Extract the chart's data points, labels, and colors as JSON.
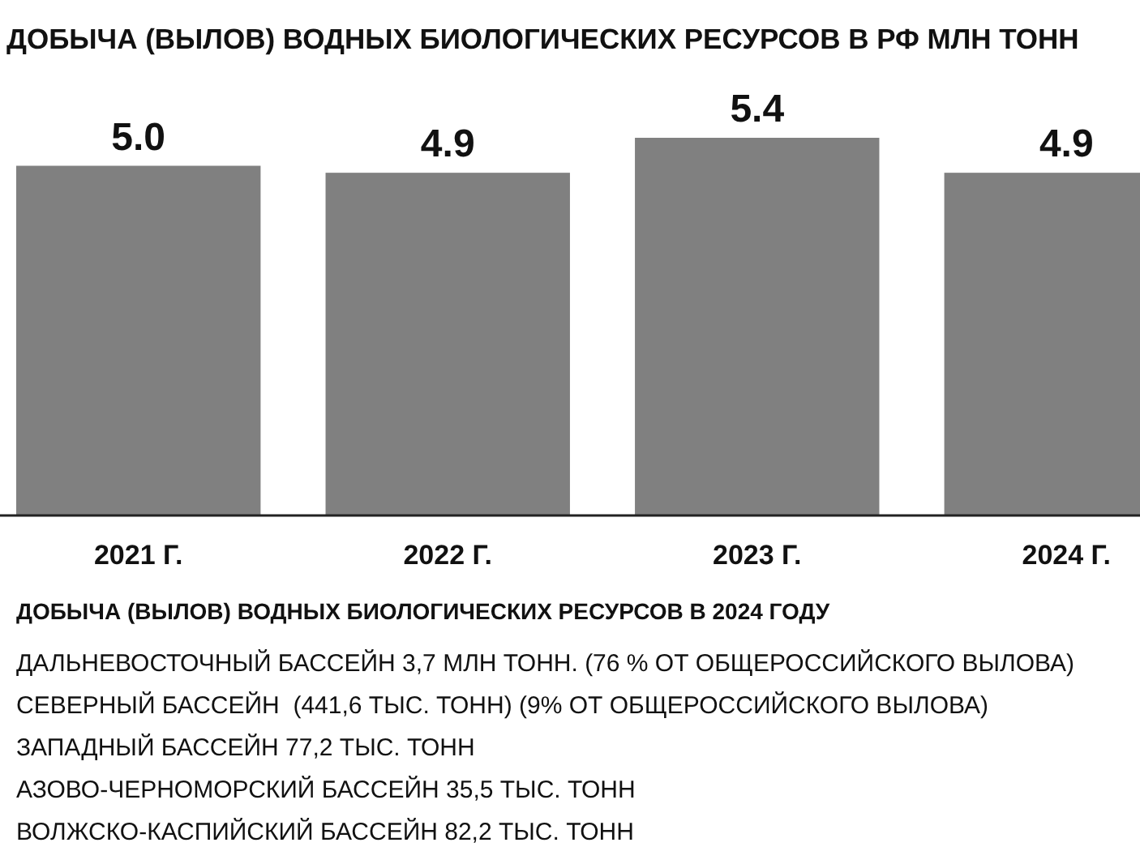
{
  "chart_data": {
    "type": "bar",
    "title": "ДОБЫЧА (ВЫЛОВ) ВОДНЫХ БИОЛОГИЧЕСКИХ РЕСУРСОВ В РФ МЛН ТОНН",
    "subtitle": "ДОБЫЧА (ВЫЛОВ) ВОДНЫХ БИОЛОГИЧЕСКИХ РЕСУРСОВ В 2024 ГОДУ",
    "categories": [
      "2021 Г.",
      "2022 Г.",
      "2023 Г.",
      "2024 Г."
    ],
    "values": [
      5.0,
      4.9,
      5.4,
      4.9
    ],
    "value_labels": [
      "5.0",
      "4.9",
      "5.4",
      "4.9"
    ],
    "color": "#808080",
    "tick_labels": "x",
    "annotations": [
      "ДАЛЬНЕВОСТОЧНЫЙ БАССЕЙН 3,7 МЛН ТОНН. (76 % ОТ ОБЩЕРОССИЙСКОГО ВЫЛОВА)",
      "СЕВЕРНЫЙ БАССЕЙН  (441,6 ТЫС. ТОНН) (9% ОТ ОБЩЕРОССИЙСКОГО ВЫЛОВА)",
      "ЗАПАДНЫЙ БАССЕЙН 77,2 ТЫС. ТОНН",
      "АЗОВО-ЧЕРНОМОРСКИЙ БАССЕЙН 35,5 ТЫС. ТОНН",
      "ВОЛЖСКО-КАСПИЙСКИЙ БАССЕЙН 82,2 ТЫС. ТОНН"
    ]
  }
}
